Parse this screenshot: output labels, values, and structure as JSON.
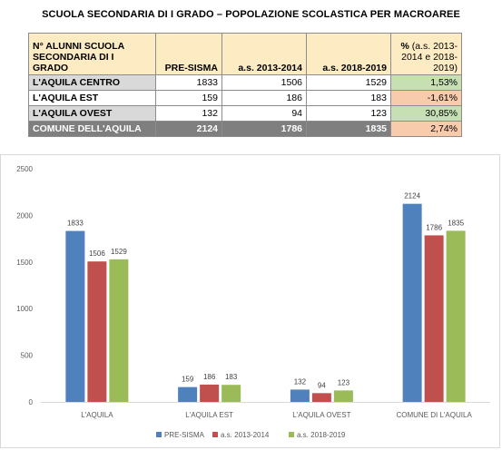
{
  "title": "SCUOLA SECONDARIA DI I GRADO – POPOLAZIONE SCOLASTICA PER MACROAREE",
  "table": {
    "header": {
      "label": "N° ALUNNI SCUOLA SECONDARIA DI I GRADO",
      "col1": "PRE-SISMA",
      "col2": "a.s. 2013-2014",
      "col3": "a.s. 2018-2019",
      "col4_bold": "%",
      "col4_rest": " (a.s. 2013-2014 e 2018-2019)"
    },
    "rows": [
      {
        "name": "L'AQUILA CENTRO",
        "v1": "1833",
        "v2": "1506",
        "v3": "1529",
        "pct": "1,53%"
      },
      {
        "name": "L'AQUILA EST",
        "v1": "159",
        "v2": "186",
        "v3": "183",
        "pct": "-1,61%"
      },
      {
        "name": "L'AQUILA OVEST",
        "v1": "132",
        "v2": "94",
        "v3": "123",
        "pct": "30,85%"
      }
    ],
    "total": {
      "name": "COMUNE DELL'AQUILA",
      "v1": "2124",
      "v2": "1786",
      "v3": "1835",
      "pct": "2,74%"
    }
  },
  "colors": {
    "pre": "#4f81bd",
    "y2014": "#c0504d",
    "y2019": "#9bbb59"
  },
  "chart_data": {
    "type": "bar",
    "categories": [
      "L'AQUILA",
      "L'AQUILA EST",
      "L'AQUILA OVEST",
      "COMUNE DI L'AQUILA"
    ],
    "series": [
      {
        "name": "PRE-SISMA",
        "values": [
          1833,
          159,
          132,
          2124
        ]
      },
      {
        "name": "a.s. 2013-2014",
        "values": [
          1506,
          186,
          94,
          1786
        ]
      },
      {
        "name": "a.s. 2018-2019",
        "values": [
          1529,
          183,
          123,
          1835
        ]
      }
    ],
    "yticks": [
      0,
      500,
      1000,
      1500,
      2000,
      2500
    ],
    "ylim": [
      0,
      2500
    ],
    "grid": false,
    "legend": "bottom"
  }
}
